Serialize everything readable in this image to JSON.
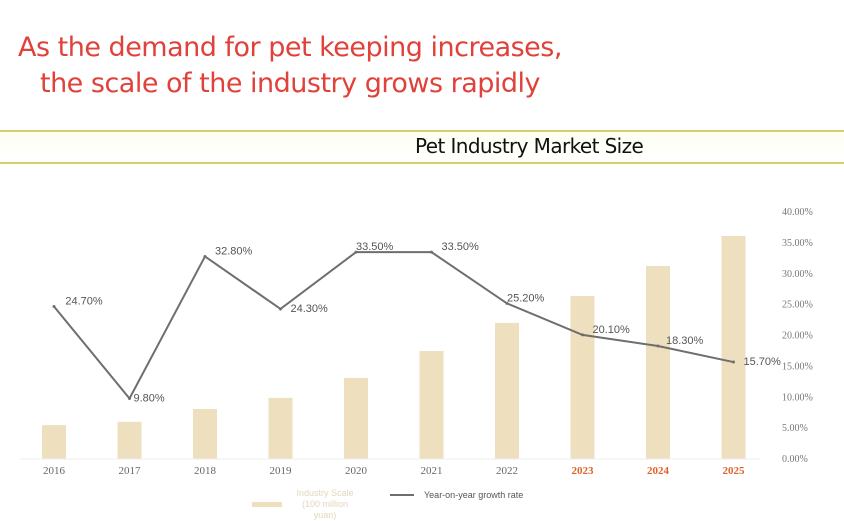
{
  "headline": [
    "As the demand for pet keeping increases,",
    "the scale of the industry grows rapidly"
  ],
  "chart_data": {
    "type": "bar+line",
    "title": "Pet Industry Market Size",
    "categories": [
      "2016",
      "2017",
      "2018",
      "2019",
      "2020",
      "2021",
      "2022",
      "2023",
      "2024",
      "2025"
    ],
    "highlighted_categories": [
      "2023",
      "2024",
      "2025"
    ],
    "series": [
      {
        "name": "Industry Scale (100 million yuan)",
        "type": "bar",
        "axis": "left",
        "color": "#eedfbf",
        "values": [
          1220,
          1340,
          1800,
          2200,
          2920,
          3890,
          4900,
          5870,
          6950,
          8030
        ]
      },
      {
        "name": "Year-on-year growth rate",
        "type": "line",
        "axis": "right",
        "color": "#6e6e6e",
        "values": [
          24.7,
          9.8,
          32.8,
          24.3,
          33.5,
          33.5,
          25.2,
          20.1,
          18.3,
          15.7
        ],
        "labels": [
          "24.70%",
          "9.80%",
          "32.80%",
          "24.30%",
          "33.50%",
          "33.50%",
          "25.20%",
          "20.10%",
          "18.30%",
          "15.70%"
        ]
      }
    ],
    "y2lim": [
      0,
      40
    ],
    "y2ticks": [
      "0.00%",
      "5.00%",
      "10.00%",
      "15.00%",
      "20.00%",
      "25.00%",
      "30.00%",
      "35.00%",
      "40.00%"
    ],
    "legend_position": "bottom",
    "grid": false,
    "colors": {
      "headline": "#e0413a",
      "highlight_year": "#e0602a",
      "band": "#d9cd6a"
    }
  }
}
